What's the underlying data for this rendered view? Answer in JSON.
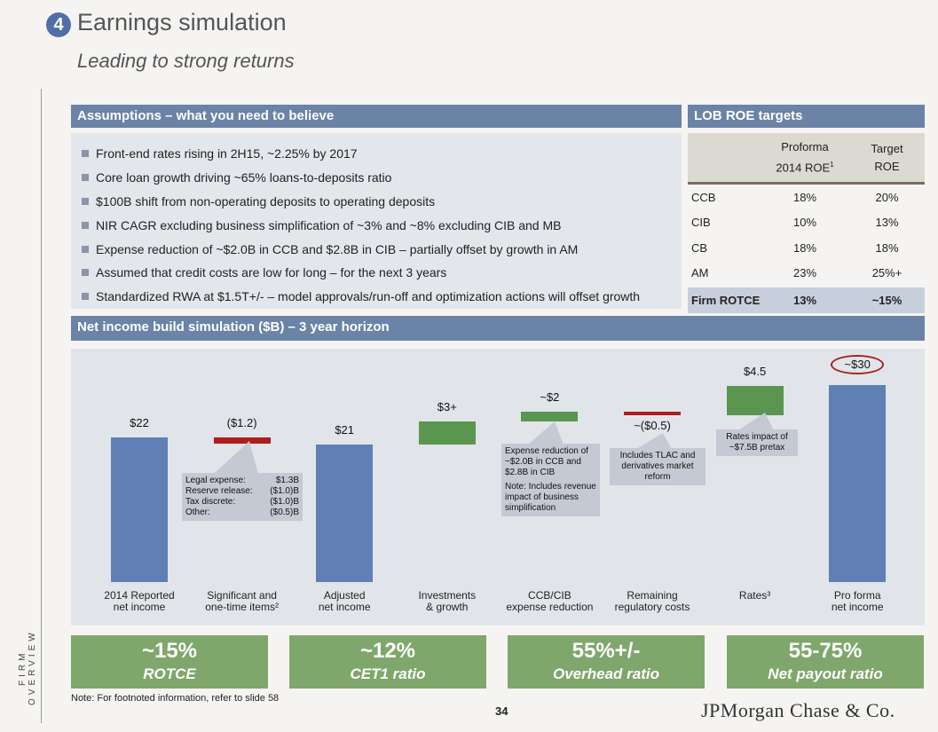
{
  "header": {
    "section_number": "4",
    "title": "Earnings simulation",
    "subtitle": "Leading to strong returns",
    "side_label": "FIRM OVERVIEW"
  },
  "assumptions": {
    "title": "Assumptions – what you need to believe",
    "items": [
      "Front-end rates rising in 2H15, ~2.25% by 2017",
      "Core loan growth driving ~65% loans-to-deposits ratio",
      "$100B shift from non-operating deposits to operating deposits",
      "NIR CAGR excluding business simplification of ~3% and ~8% excluding CIB and MB",
      "Expense reduction of ~$2.0B in CCB and $2.8B in CIB – partially offset by growth in AM",
      "Assumed that credit costs are low for long – for the next 3 years",
      "Standardized RWA at $1.5T+/-  – model approvals/run-off and optimization actions will offset growth"
    ]
  },
  "lob": {
    "title": "LOB ROE targets",
    "col1_line1": "Proforma",
    "col1_line2": "2014 ROE",
    "col1_sup": "1",
    "col2_line1": "Target",
    "col2_line2": "ROE",
    "rows": [
      [
        "CCB",
        "18%",
        "20%"
      ],
      [
        "CIB",
        "10%",
        "13%"
      ],
      [
        "CB",
        "18%",
        "18%"
      ],
      [
        "AM",
        "23%",
        "25%+"
      ]
    ],
    "firm": [
      "Firm ROTCE",
      "13%",
      "~15%"
    ]
  },
  "chart_data": {
    "type": "bar",
    "subtype": "waterfall",
    "title": "Net income build simulation ($B) – 3 year horizon",
    "categories": [
      "2014 Reported net income",
      "Significant and one-time items²",
      "Adjusted net income",
      "Investments & growth",
      "CCB/CIB expense reduction",
      "Remaining regulatory costs",
      "Rates³",
      "Pro forma net income"
    ],
    "category_lines": [
      [
        "2014 Reported",
        "net income"
      ],
      [
        "Significant and",
        "one-time items²"
      ],
      [
        "Adjusted",
        "net income"
      ],
      [
        "Investments",
        "& growth"
      ],
      [
        "CCB/CIB",
        "expense reduction"
      ],
      [
        "Remaining",
        "regulatory costs"
      ],
      [
        "Rates³",
        ""
      ],
      [
        "Pro forma",
        "net income"
      ]
    ],
    "values": [
      22,
      -1.2,
      21,
      3.4,
      1.5,
      -0.5,
      4.5,
      30
    ],
    "kinds": [
      "total",
      "delta",
      "total",
      "delta",
      "delta",
      "delta",
      "delta",
      "total"
    ],
    "labels": [
      "$22",
      "($1.2)",
      "$21",
      "$3+",
      "~$2",
      "~($0.5)",
      "$4.5",
      "~$30"
    ],
    "ylim": [
      0,
      32
    ],
    "colors": {
      "total": "#5f7fb5",
      "increase": "#5a9650",
      "decrease": "#b01c1c"
    },
    "callouts": {
      "one_time": [
        [
          "Legal expense:",
          "$1.3B"
        ],
        [
          "Reserve release:",
          "($1.0)B"
        ],
        [
          "Tax discrete:",
          "($1.0)B"
        ],
        [
          "Other:",
          "($0.5)B"
        ]
      ],
      "expense": [
        "Expense reduction of ~$2.0B in CCB and $2.8B in CIB",
        "Note: Includes revenue impact of business simplification"
      ],
      "regulatory": "Includes TLAC and derivatives market reform",
      "rates": "Rates impact of ~$7.5B pretax"
    }
  },
  "kpis": [
    {
      "value": "~15%",
      "label": "ROTCE"
    },
    {
      "value": "~12%",
      "label": "CET1 ratio"
    },
    {
      "value": "55%+/-",
      "label": "Overhead ratio"
    },
    {
      "value": "55-75%",
      "label": "Net payout ratio"
    }
  ],
  "footer": {
    "note": "Note: For footnoted information, refer to slide 58",
    "page": "34",
    "logo": "JPMorgan Chase & Co."
  }
}
